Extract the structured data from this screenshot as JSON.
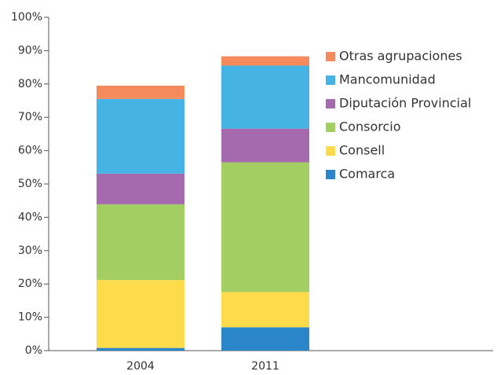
{
  "chart_data": {
    "type": "stacked_bar",
    "categories": [
      "2004",
      "2011"
    ],
    "series": [
      {
        "name": "Comarca",
        "color": "#2a86c8",
        "values": [
          0.8,
          7.0
        ]
      },
      {
        "name": "Consell",
        "color": "#fddb4a",
        "values": [
          20.4,
          10.6
        ]
      },
      {
        "name": "Consorcio",
        "color": "#a3cf62",
        "values": [
          22.7,
          38.9
        ]
      },
      {
        "name": "Diputación Provincial",
        "color": "#a569ad",
        "values": [
          9.2,
          10.1
        ]
      },
      {
        "name": "Mancomunidad",
        "color": "#45b3e3",
        "values": [
          22.4,
          18.9
        ]
      },
      {
        "name": "Otras agrupaciones",
        "color": "#f58a5c",
        "values": [
          4.0,
          2.8
        ]
      }
    ],
    "ylim": [
      0,
      100
    ],
    "yticks": [
      {
        "value": 0,
        "label": "0%"
      },
      {
        "value": 10,
        "label": "10%"
      },
      {
        "value": 20,
        "label": "20%"
      },
      {
        "value": 30,
        "label": "30%"
      },
      {
        "value": 40,
        "label": "40%"
      },
      {
        "value": 50,
        "label": "50%"
      },
      {
        "value": 60,
        "label": "60%"
      },
      {
        "value": 70,
        "label": "70%"
      },
      {
        "value": 80,
        "label": "80%"
      },
      {
        "value": 90,
        "label": "90%"
      },
      {
        "value": 100,
        "label": "100%"
      }
    ],
    "legend": "right"
  }
}
